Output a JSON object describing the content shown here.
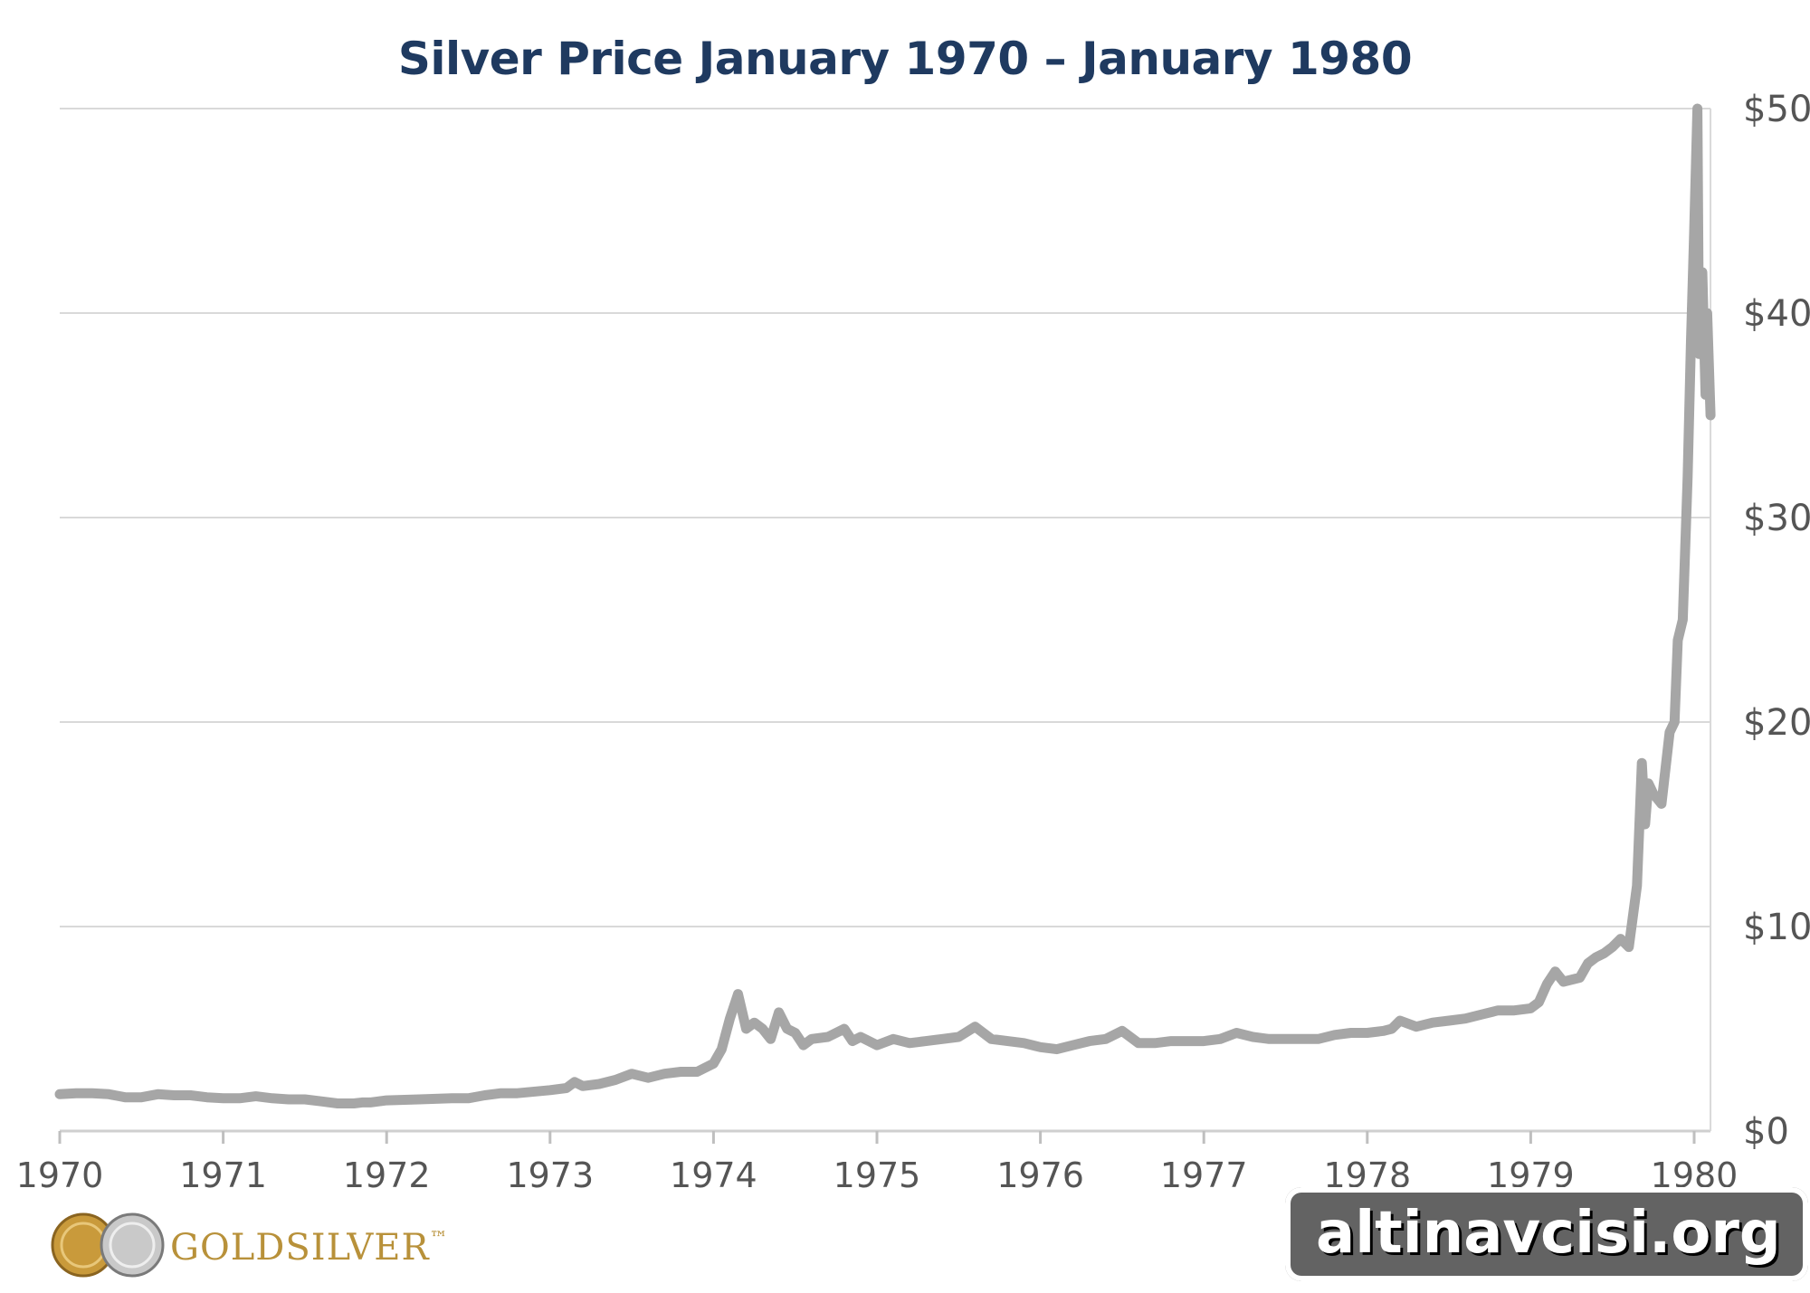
{
  "title": "Silver Price January 1970 – January 1980",
  "brand": {
    "text": "GOLDSILVER",
    "tm": "™"
  },
  "watermark": "altinavcisi.org",
  "colors": {
    "title": "#1f3a60",
    "line": "#a6a6a6",
    "grid": "#d9d9d9",
    "brand_gold": "#b8913a"
  },
  "chart_data": {
    "type": "line",
    "title": "Silver Price January 1970 – January 1980",
    "xlabel": "",
    "ylabel": "",
    "xlim": [
      1970,
      1980.1
    ],
    "ylim": [
      0,
      50
    ],
    "x_ticks": [
      1970,
      1971,
      1972,
      1973,
      1974,
      1975,
      1976,
      1977,
      1978,
      1979,
      1980
    ],
    "y_ticks": [
      0,
      10,
      20,
      30,
      40,
      50
    ],
    "y_tick_labels": [
      "$0",
      "$10",
      "$20",
      "$30",
      "$40",
      "$50"
    ],
    "y_axis_position": "right",
    "grid": "horizontal",
    "legend": "none",
    "series": [
      {
        "x": [
          1970.0,
          1970.1,
          1970.2,
          1970.3,
          1970.4,
          1970.5,
          1970.6,
          1970.7,
          1970.8,
          1970.9,
          1971.0,
          1971.1,
          1971.2,
          1971.3,
          1971.4,
          1971.5,
          1971.6,
          1971.7,
          1971.8,
          1971.85,
          1971.9,
          1972.0,
          1972.2,
          1972.4,
          1972.5,
          1972.6,
          1972.7,
          1972.8,
          1973.0,
          1973.1,
          1973.15,
          1973.2,
          1973.3,
          1973.4,
          1973.5,
          1973.6,
          1973.7,
          1973.8,
          1973.9,
          1974.0,
          1974.05,
          1974.1,
          1974.15,
          1974.2,
          1974.25,
          1974.3,
          1974.35,
          1974.4,
          1974.45,
          1974.5,
          1974.55,
          1974.6,
          1974.7,
          1974.8,
          1974.85,
          1974.9,
          1975.0,
          1975.1,
          1975.2,
          1975.3,
          1975.4,
          1975.5,
          1975.6,
          1975.7,
          1975.8,
          1975.9,
          1976.0,
          1976.1,
          1976.2,
          1976.3,
          1976.4,
          1976.5,
          1976.6,
          1976.7,
          1976.8,
          1976.9,
          1977.0,
          1977.1,
          1977.2,
          1977.3,
          1977.4,
          1977.5,
          1977.6,
          1977.7,
          1977.8,
          1977.9,
          1978.0,
          1978.1,
          1978.15,
          1978.2,
          1978.3,
          1978.4,
          1978.5,
          1978.6,
          1978.7,
          1978.8,
          1978.9,
          1979.0,
          1979.05,
          1979.1,
          1979.15,
          1979.2,
          1979.3,
          1979.35,
          1979.4,
          1979.45,
          1979.5,
          1979.55,
          1979.6,
          1979.65,
          1979.68,
          1979.7,
          1979.72,
          1979.75,
          1979.8,
          1979.85,
          1979.88,
          1979.9,
          1979.93,
          1979.96,
          1979.98,
          1980.0,
          1980.02,
          1980.03,
          1980.05,
          1980.07,
          1980.08,
          1980.1
        ],
        "values": [
          1.8,
          1.85,
          1.85,
          1.8,
          1.65,
          1.65,
          1.8,
          1.75,
          1.75,
          1.65,
          1.6,
          1.6,
          1.7,
          1.6,
          1.55,
          1.55,
          1.45,
          1.35,
          1.35,
          1.4,
          1.4,
          1.5,
          1.55,
          1.6,
          1.6,
          1.75,
          1.85,
          1.85,
          2.0,
          2.1,
          2.4,
          2.2,
          2.3,
          2.5,
          2.8,
          2.6,
          2.8,
          2.9,
          2.9,
          3.3,
          4.0,
          5.5,
          6.7,
          5.0,
          5.3,
          5.0,
          4.5,
          5.8,
          5.0,
          4.8,
          4.2,
          4.5,
          4.6,
          5.0,
          4.4,
          4.6,
          4.2,
          4.5,
          4.3,
          4.4,
          4.5,
          4.6,
          5.1,
          4.5,
          4.4,
          4.3,
          4.1,
          4.0,
          4.2,
          4.4,
          4.5,
          4.9,
          4.3,
          4.3,
          4.4,
          4.4,
          4.4,
          4.5,
          4.8,
          4.6,
          4.5,
          4.5,
          4.5,
          4.5,
          4.7,
          4.8,
          4.8,
          4.9,
          5.0,
          5.4,
          5.1,
          5.3,
          5.4,
          5.5,
          5.7,
          5.9,
          5.9,
          6.0,
          6.3,
          7.2,
          7.8,
          7.3,
          7.5,
          8.2,
          8.5,
          8.7,
          9.0,
          9.4,
          9.0,
          12.0,
          18.0,
          15.0,
          17.0,
          16.5,
          16.0,
          19.5,
          20.0,
          24.0,
          25.0,
          32.0,
          38.5,
          44.0,
          50.0,
          38.0,
          42.0,
          36.0,
          40.0,
          35.0
        ]
      }
    ]
  }
}
